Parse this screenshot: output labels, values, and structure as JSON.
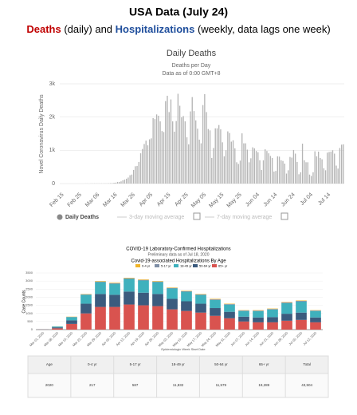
{
  "header": {
    "title": "USA Data (July 24)",
    "subtitle": [
      "Deaths",
      "(daily) and",
      "Hospitalizations",
      "(weekly, data lags one week)"
    ]
  },
  "chart_data": [
    {
      "type": "bar",
      "title": "Daily Deaths",
      "subtitle": "Deaths per Day",
      "note": "Data as of 0:00 GMT+8",
      "y_label": "Novel Coronavirus Daily Deaths",
      "categories": [
        "Feb 15",
        null,
        null,
        null,
        null,
        null,
        null,
        null,
        null,
        null,
        "Feb 25",
        null,
        null,
        null,
        null,
        null,
        null,
        null,
        null,
        null,
        "Mar 06",
        null,
        null,
        null,
        null,
        null,
        null,
        null,
        null,
        null,
        "Mar 16",
        null,
        null,
        null,
        null,
        null,
        null,
        null,
        null,
        null,
        "Mar 26",
        null,
        null,
        null,
        null,
        null,
        null,
        null,
        null,
        null,
        "Apr 05",
        null,
        null,
        null,
        null,
        null,
        null,
        null,
        null,
        null,
        "Apr 15",
        null,
        null,
        null,
        null,
        null,
        null,
        null,
        null,
        null,
        "Apr 25",
        null,
        null,
        null,
        null,
        null,
        null,
        null,
        null,
        null,
        "May 05",
        null,
        null,
        null,
        null,
        null,
        null,
        null,
        null,
        null,
        "May 15",
        null,
        null,
        null,
        null,
        null,
        null,
        null,
        null,
        null,
        "May 25",
        null,
        null,
        null,
        null,
        null,
        null,
        null,
        null,
        null,
        "Jun 04",
        null,
        null,
        null,
        null,
        null,
        null,
        null,
        null,
        null,
        "Jun 14",
        null,
        null,
        null,
        null,
        null,
        null,
        null,
        null,
        null,
        "Jun 24",
        null,
        null,
        null,
        null,
        null,
        null,
        null,
        null,
        null,
        "Jul 04",
        null,
        null,
        null,
        null,
        null,
        null,
        null,
        null,
        null,
        "Jul 14",
        null,
        null,
        null,
        null,
        null,
        null,
        null,
        null,
        null
      ],
      "series": [
        {
          "name": "Daily Deaths",
          "color": "#b5b5b5",
          "values": [
            0,
            0,
            0,
            0,
            0,
            0,
            0,
            0,
            0,
            0,
            0,
            0,
            0,
            0,
            1,
            1,
            0,
            2,
            3,
            4,
            3,
            2,
            3,
            4,
            3,
            5,
            4,
            7,
            11,
            12,
            21,
            27,
            49,
            49,
            66,
            99,
            119,
            146,
            182,
            250,
            270,
            410,
            520,
            530,
            650,
            910,
            1040,
            1190,
            1290,
            1150,
            1330,
            1360,
            1970,
            1940,
            2080,
            2040,
            1870,
            1580,
            1550,
            2480,
            2640,
            2150,
            2530,
            1870,
            1560,
            1880,
            2700,
            2340,
            1990,
            2030,
            1870,
            1390,
            1180,
            2170,
            2600,
            2180,
            1900,
            1650,
            1320,
            1210,
            2360,
            2690,
            2150,
            1640,
            1600,
            770,
            1070,
            1660,
            1660,
            1760,
            1630,
            1240,
            820,
            1000,
            1570,
            1520,
            1260,
            1300,
            1060,
            640,
            590,
            690,
            1510,
            1210,
            1210,
            1020,
            640,
            760,
            1090,
            1060,
            980,
            940,
            700,
            410,
            700,
            1030,
            980,
            910,
            830,
            770,
            360,
            380,
            820,
            810,
            700,
            680,
            600,
            300,
            400,
            800,
            780,
            1010,
            900,
            650,
            280,
            340,
            1200,
            700,
            640,
            640,
            270,
            230,
            340,
            970,
            820,
            960,
            770,
            730,
            460,
            400,
            930,
            950,
            960,
            1000,
            900,
            540,
            450,
            1070,
            1170,
            1180
          ]
        }
      ],
      "hidden_series": [
        "3-day moving average",
        "7-day moving average"
      ],
      "ylim": [
        0,
        3000
      ],
      "yticks": [
        0,
        {
          "value": 1000,
          "label": "1k"
        },
        {
          "value": 2000,
          "label": "2k"
        },
        {
          "value": 3000,
          "label": "3k"
        }
      ],
      "grid": true
    },
    {
      "type": "stacked_bar",
      "title": "COVID-19 Laboratory-Confirmed Hospitalizations",
      "subtitle": "Preliminary data as of Jul 18, 2020",
      "chart_title": "Covid-19-associated Hospitalizations By Age",
      "y_label": "Case Counts",
      "x_label": "Epidemiologic Week Start Date",
      "categories": [
        "Mar 01, 2020",
        "Mar 08, 2020",
        "Mar 15, 2020",
        "Mar 22, 2020",
        "Mar 29, 2020",
        "Apr 05, 2020",
        "Apr 12, 2020",
        "Apr 19, 2020",
        "Apr 26, 2020",
        "May 03, 2020",
        "May 10, 2020",
        "May 17, 2020",
        "May 24, 2020",
        "May 31, 2020",
        "Jun 07, 2020",
        "Jun 14, 2020",
        "Jun 21, 2020",
        "Jun 28, 2020",
        "Jul 05, 2020",
        "Jul 12, 2020"
      ],
      "series": [
        {
          "name": "0-4 yr",
          "color": "#f0b429",
          "values": [
            0,
            5,
            15,
            20,
            30,
            30,
            30,
            30,
            30,
            25,
            25,
            25,
            30,
            25,
            20,
            25,
            25,
            25,
            25,
            20
          ]
        },
        {
          "name": "5-17 yr",
          "color": "#7f8fa6",
          "values": [
            1,
            5,
            15,
            30,
            40,
            40,
            40,
            40,
            40,
            35,
            35,
            35,
            40,
            35,
            30,
            35,
            35,
            45,
            45,
            30
          ]
        },
        {
          "name": "18-49 yr",
          "color": "#3fb1bd",
          "values": [
            4,
            50,
            200,
            550,
            730,
            680,
            780,
            750,
            730,
            640,
            590,
            540,
            500,
            440,
            350,
            390,
            470,
            650,
            680,
            400
          ]
        },
        {
          "name": "50-64 yr",
          "color": "#3b5b7e",
          "values": [
            5,
            60,
            220,
            600,
            800,
            750,
            800,
            780,
            750,
            650,
            600,
            550,
            480,
            400,
            300,
            300,
            320,
            430,
            450,
            300
          ]
        },
        {
          "name": "65+ yr",
          "color": "#d9534f",
          "values": [
            10,
            80,
            350,
            1000,
            1400,
            1400,
            1550,
            1500,
            1450,
            1250,
            1150,
            1050,
            850,
            700,
            500,
            450,
            450,
            550,
            600,
            450
          ]
        }
      ],
      "ylim": [
        0,
        3500
      ],
      "yticks": [
        0,
        500,
        1000,
        1500,
        2000,
        2500,
        3000,
        3500
      ],
      "grid": true
    }
  ],
  "table": {
    "header": [
      "Age",
      "0-4 yr",
      "5-17 yr",
      "18-49 yr",
      "50-64 yr",
      "65+ yr",
      "Total"
    ],
    "rows": [
      [
        "2020",
        "217",
        "587",
        "11,832",
        "11,579",
        "19,289",
        "43,504"
      ]
    ]
  }
}
